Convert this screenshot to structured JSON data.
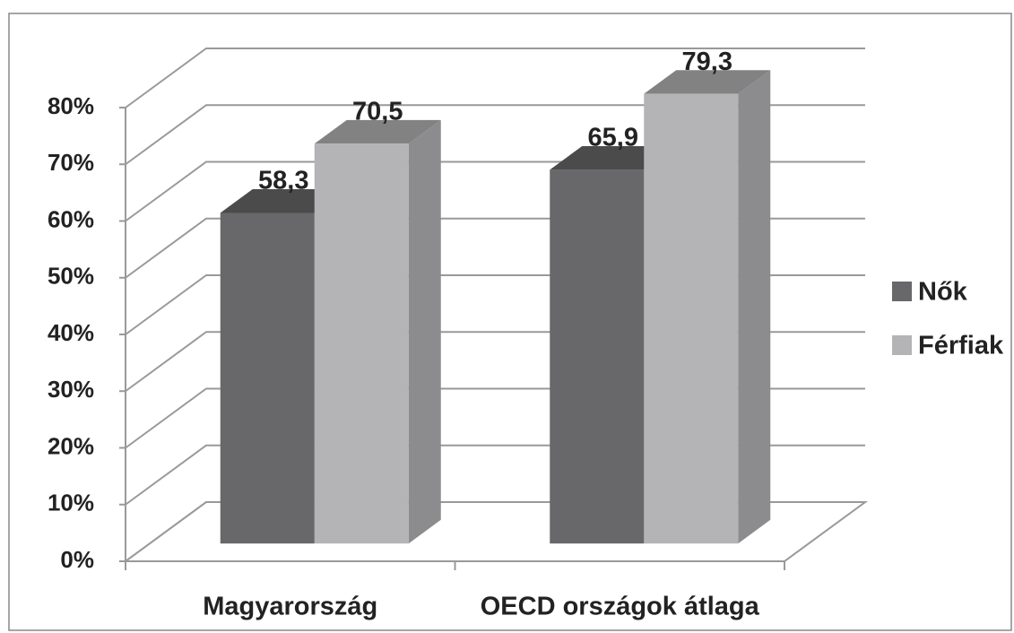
{
  "chart_data": {
    "type": "bar3d",
    "categories": [
      "Magyarország",
      "OECD országok átlaga"
    ],
    "series": [
      {
        "name": "Nők",
        "color": "#68686a",
        "values": [
          58.3,
          65.9
        ],
        "value_labels": [
          "58,3",
          "65,9"
        ]
      },
      {
        "name": "Férfiak",
        "color": "#b4b4b6",
        "values": [
          70.5,
          79.3
        ],
        "value_labels": [
          "70,5",
          "79,3"
        ]
      }
    ],
    "ylim": [
      0,
      80
    ],
    "yticks": [
      {
        "value": 0,
        "label": "0%"
      },
      {
        "value": 10,
        "label": "10%"
      },
      {
        "value": 20,
        "label": "20%"
      },
      {
        "value": 30,
        "label": "30%"
      },
      {
        "value": 40,
        "label": "40%"
      },
      {
        "value": 50,
        "label": "50%"
      },
      {
        "value": 60,
        "label": "60%"
      },
      {
        "value": 70,
        "label": "70%"
      },
      {
        "value": 80,
        "label": "80%"
      }
    ],
    "grid": true,
    "legend": "right"
  }
}
